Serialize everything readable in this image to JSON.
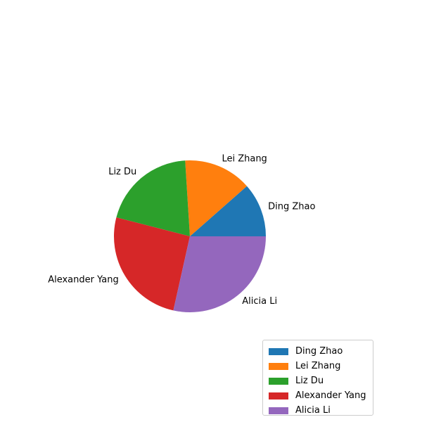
{
  "chart_data": {
    "type": "pie",
    "title": "",
    "labels": [
      "Ding Zhao",
      "Lei Zhang",
      "Liz Du",
      "Alexander Yang",
      "Alicia Li"
    ],
    "values": [
      11.5,
      14.5,
      20,
      25.5,
      28.5
    ],
    "colors": [
      "#1f77b4",
      "#ff7f0e",
      "#2ca02c",
      "#d62728",
      "#9467bd"
    ],
    "start_angle_deg": 0,
    "direction": "counterclockwise",
    "legend_position": "lower-right"
  }
}
